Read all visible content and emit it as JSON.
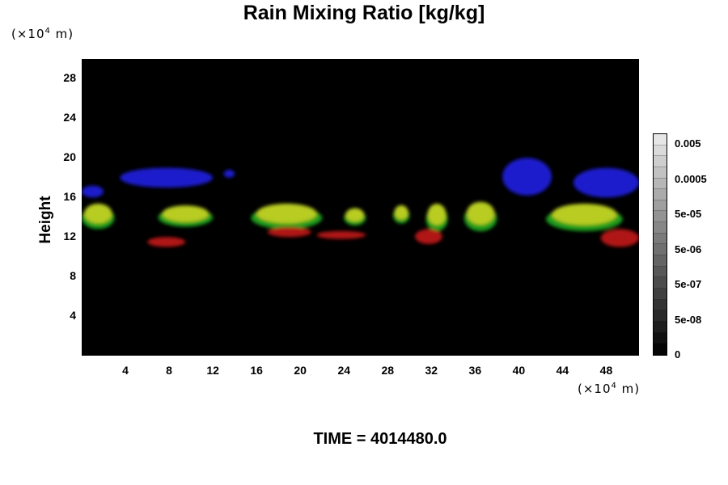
{
  "chart_data": {
    "type": "heatmap",
    "title": "Rain Mixing Ratio [kg/kg]",
    "ylabel": "Height",
    "y_unit_prefix": "(×10",
    "y_unit_exp": "4",
    "y_unit_suffix": " m)",
    "x_unit_prefix": "(×10",
    "x_unit_exp": "4",
    "x_unit_suffix": " m)",
    "xlim": [
      0,
      51
    ],
    "ylim": [
      0,
      30
    ],
    "x_ticks": [
      "4",
      "8",
      "12",
      "16",
      "20",
      "24",
      "28",
      "32",
      "36",
      "40",
      "44",
      "48"
    ],
    "y_ticks": [
      "4",
      "8",
      "12",
      "16",
      "20",
      "24",
      "28"
    ],
    "colorbar_labels": [
      "0.005",
      "0.0005",
      "5e-05",
      "5e-06",
      "5e-07",
      "5e-08",
      "0"
    ],
    "colors": {
      "background": "#000000",
      "upper_band": "#1a1acc",
      "middle_band": "#b8cc20",
      "middle_band_edge": "#1f9c1f",
      "lower_band": "#b01515"
    },
    "features": [
      {
        "band": "upper",
        "x_min": 0,
        "x_max": 2,
        "y_min": 16.0,
        "y_max": 17.2
      },
      {
        "band": "upper",
        "x_min": 3.5,
        "x_max": 12,
        "y_min": 17.0,
        "y_max": 19.0
      },
      {
        "band": "upper",
        "x_min": 13,
        "x_max": 14,
        "y_min": 18.0,
        "y_max": 18.8
      },
      {
        "band": "upper",
        "x_min": 38.5,
        "x_max": 43,
        "y_min": 16.2,
        "y_max": 20.0
      },
      {
        "band": "upper",
        "x_min": 45,
        "x_max": 51,
        "y_min": 16.0,
        "y_max": 19.0
      },
      {
        "band": "middle",
        "x_min": 0,
        "x_max": 3,
        "y_min": 13.0,
        "y_max": 15.5
      },
      {
        "band": "middle",
        "x_min": 7,
        "x_max": 12,
        "y_min": 13.2,
        "y_max": 15.3
      },
      {
        "band": "middle",
        "x_min": 15.5,
        "x_max": 22,
        "y_min": 13.0,
        "y_max": 15.5
      },
      {
        "band": "middle",
        "x_min": 24,
        "x_max": 26,
        "y_min": 13.3,
        "y_max": 15.0
      },
      {
        "band": "middle",
        "x_min": 28.5,
        "x_max": 30,
        "y_min": 13.5,
        "y_max": 15.3
      },
      {
        "band": "middle",
        "x_min": 31.5,
        "x_max": 33.5,
        "y_min": 12.8,
        "y_max": 15.5
      },
      {
        "band": "middle",
        "x_min": 35,
        "x_max": 38,
        "y_min": 12.8,
        "y_max": 15.7
      },
      {
        "band": "middle",
        "x_min": 42.5,
        "x_max": 49.5,
        "y_min": 12.8,
        "y_max": 15.5
      },
      {
        "band": "lower",
        "x_min": 6,
        "x_max": 9.5,
        "y_min": 11.0,
        "y_max": 12.0
      },
      {
        "band": "lower",
        "x_min": 17,
        "x_max": 21,
        "y_min": 12.0,
        "y_max": 13.0
      },
      {
        "band": "lower",
        "x_min": 21.5,
        "x_max": 26,
        "y_min": 11.8,
        "y_max": 12.6
      },
      {
        "band": "lower",
        "x_min": 30.5,
        "x_max": 33,
        "y_min": 11.3,
        "y_max": 12.8
      },
      {
        "band": "lower",
        "x_min": 47.5,
        "x_max": 51,
        "y_min": 11.0,
        "y_max": 12.8
      }
    ]
  },
  "time_label": "TIME = 4014480.0"
}
